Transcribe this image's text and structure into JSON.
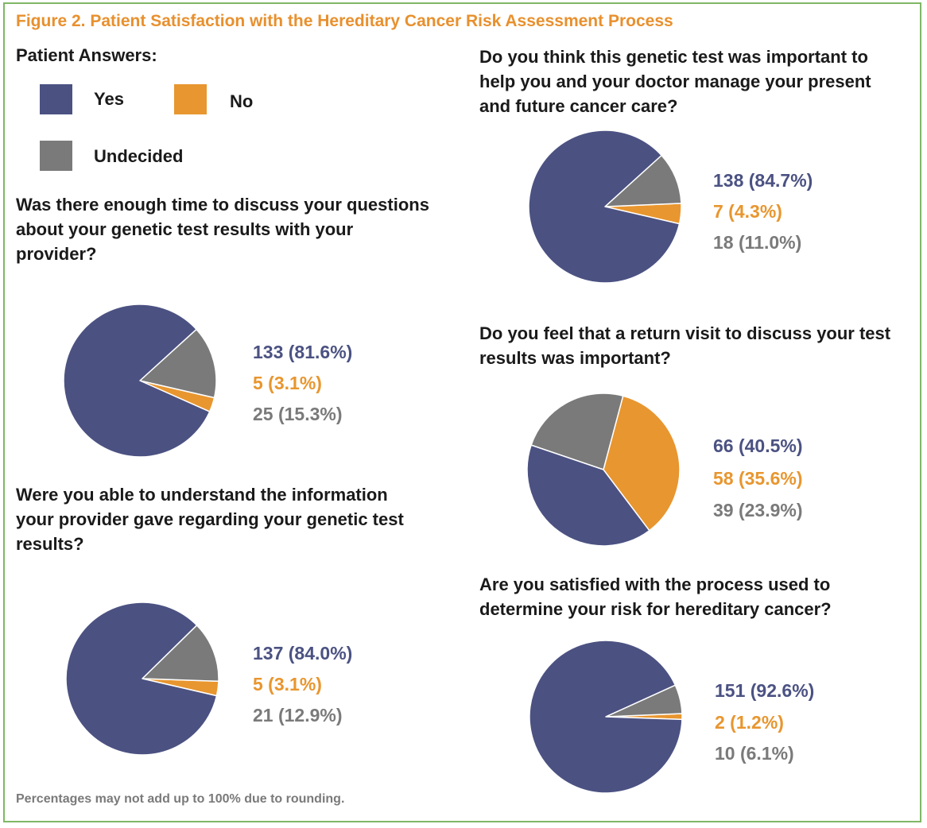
{
  "figure_title": "Figure 2. Patient Satisfaction with the Hereditary Cancer Risk Assessment Process",
  "legend": {
    "title": "Patient Answers:",
    "items": [
      {
        "label": "Yes",
        "color": "#4b5282"
      },
      {
        "label": "No",
        "color": "#e8962f"
      },
      {
        "label": "Undecided",
        "color": "#7a7a7a"
      }
    ]
  },
  "footnote": "Percentages may not add up to 100% due to rounding.",
  "chart_data": [
    {
      "type": "pie",
      "title": "Was there enough time to discuss your questions about your genetic test results with your provider?",
      "title_lines": [
        "Was there enough time to discuss your questions",
        "about your genetic test results with your",
        "provider?"
      ],
      "categories": [
        "Yes",
        "No",
        "Undecided"
      ],
      "values": [
        133,
        5,
        25
      ],
      "labels": [
        "133 (81.6%)",
        "5 (3.1%)",
        "25 (15.3%)"
      ]
    },
    {
      "type": "pie",
      "title": "Were you able to understand the information your provider gave regarding your genetic test results?",
      "title_lines": [
        "Were you able to understand the information",
        "your provider gave regarding your genetic test",
        "results?"
      ],
      "categories": [
        "Yes",
        "No",
        "Undecided"
      ],
      "values": [
        137,
        5,
        21
      ],
      "labels": [
        "137 (84.0%)",
        "5 (3.1%)",
        "21 (12.9%)"
      ]
    },
    {
      "type": "pie",
      "title": "Do you think this genetic test was important to help you and your doctor manage your present and future cancer care?",
      "title_lines": [
        "Do you think this genetic test was important to",
        "help you and your doctor manage your present",
        "and future cancer care?"
      ],
      "categories": [
        "Yes",
        "No",
        "Undecided"
      ],
      "values": [
        138,
        7,
        18
      ],
      "labels": [
        "138 (84.7%)",
        "7 (4.3%)",
        "18 (11.0%)"
      ]
    },
    {
      "type": "pie",
      "title": "Do you feel that a return visit to discuss your test results was important?",
      "title_lines": [
        "Do you feel that a return visit to discuss your test",
        "results was important?"
      ],
      "categories": [
        "Yes",
        "No",
        "Undecided"
      ],
      "values": [
        66,
        58,
        39
      ],
      "labels": [
        "66 (40.5%)",
        "58 (35.6%)",
        "39 (23.9%)"
      ]
    },
    {
      "type": "pie",
      "title": "Are you satisfied with the process used to determine your risk for hereditary cancer?",
      "title_lines": [
        "Are you satisfied with the process used to",
        "determine your risk for hereditary cancer?"
      ],
      "categories": [
        "Yes",
        "No",
        "Undecided"
      ],
      "values": [
        151,
        2,
        10
      ],
      "labels": [
        "151 (92.6%)",
        "2 (1.2%)",
        "10 (6.1%)"
      ]
    }
  ]
}
